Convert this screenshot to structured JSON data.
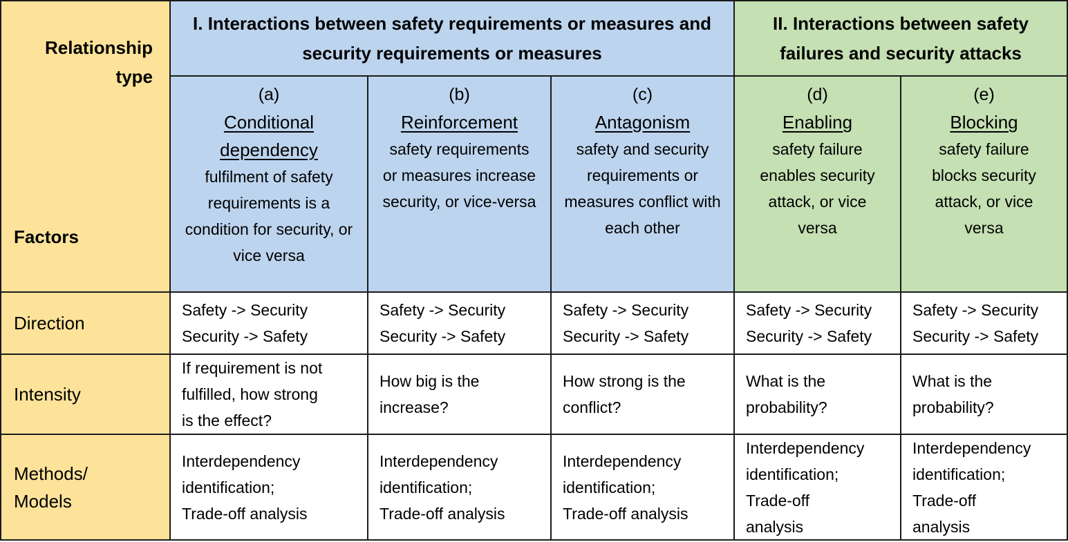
{
  "corner": {
    "relationship_type": "Relationship\ntype",
    "factors": "Factors"
  },
  "groups": [
    {
      "title": "I. Interactions between safety requirements or measures and security requirements or measures"
    },
    {
      "title": "II. Interactions between safety failures and security attacks"
    }
  ],
  "columns": [
    {
      "letter": "(a)",
      "name": "Conditional dependency",
      "desc": "fulfilment of safety requirements is a condition for security, or vice versa"
    },
    {
      "letter": "(b)",
      "name": "Reinforcement",
      "desc": "safety requirements or measures increase security, or vice-versa"
    },
    {
      "letter": "(c)",
      "name": "Antagonism",
      "desc": "safety and security requirements or measures conflict with each other"
    },
    {
      "letter": "(d)",
      "name": "Enabling",
      "desc": "safety failure enables security attack, or vice versa"
    },
    {
      "letter": "(e)",
      "name": "Blocking",
      "desc": "safety failure blocks security attack, or vice versa"
    }
  ],
  "rows": [
    {
      "label": "Direction",
      "cells": [
        "Safety -> Security\nSecurity -> Safety",
        "Safety -> Security\nSecurity -> Safety",
        "Safety -> Security\nSecurity -> Safety",
        "Safety -> Security\nSecurity -> Safety",
        "Safety -> Security\nSecurity -> Safety"
      ]
    },
    {
      "label": "Intensity",
      "cells": [
        "If requirement is not\nfulfilled, how strong\nis the effect?",
        "How big is the\nincrease?",
        "How strong is the\nconflict?",
        "What is the\nprobability?",
        "What is the\nprobability?"
      ]
    },
    {
      "label": "Methods/\nModels",
      "cells": [
        "Interdependency\nidentification;\nTrade-off analysis",
        "Interdependency\nidentification;\nTrade-off analysis",
        "Interdependency\nidentification;\nTrade-off analysis",
        "Interdependency\nidentification;\nTrade-off\nanalysis",
        "Interdependency\nidentification;\nTrade-off\nanalysis"
      ]
    }
  ],
  "colors": {
    "label_column": "#fde39a",
    "group_one": "#bdd4ee",
    "group_two": "#c5e0b3",
    "body": "#ffffff"
  }
}
